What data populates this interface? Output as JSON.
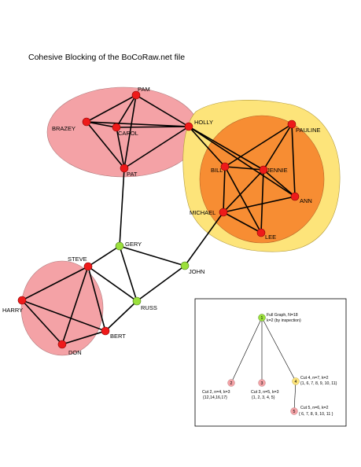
{
  "title": "Cohesive Blocking of the BoCoRaw.net file",
  "colors": {
    "red_node": "#ee1a1a",
    "green_node": "#9be03c",
    "pink_blob": "#f4a2a6",
    "yellow_blob": "#fde47a",
    "orange_blob": "#f78d33"
  },
  "nodes": {
    "pam": "PAM",
    "brazey": "BRAZEY",
    "carol": "CAROL",
    "holly": "HOLLY",
    "pat": "PAT",
    "pauline": "PAULINE",
    "bill": "BILL",
    "jennie": "JENNIE",
    "ann": "ANN",
    "michael": "MICHAEL",
    "lee": "LEE",
    "gery": "GERY",
    "john": "JOHN",
    "steve": "STEVE",
    "harry": "HARRY",
    "russ": "RUSS",
    "bert": "BERT",
    "don": "DON"
  },
  "tree": {
    "root_number": "1",
    "root_line1": "Full Graph, N=18",
    "root_line2": "k=2 (by inspection)",
    "n2": "2",
    "n3": "3",
    "n4": "4",
    "n5": "5",
    "cut2_line1": "Cut 2, n=4, k=3",
    "cut2_line2": "{12,14,16,17}",
    "cut3_line1": "Cut 3, n=5, k=3",
    "cut3_line2": "{1, 2, 3, 4, 5}",
    "cut4_line1": "Cut 4, n=7, k=2",
    "cut4_line2": "{1, 6, 7, 8, 9, 10, 11}",
    "cut5_line1": "Cut 5, n=6, k=2",
    "cut5_line2": "{ 6, 7, 8, 9, 10, 11 }"
  }
}
